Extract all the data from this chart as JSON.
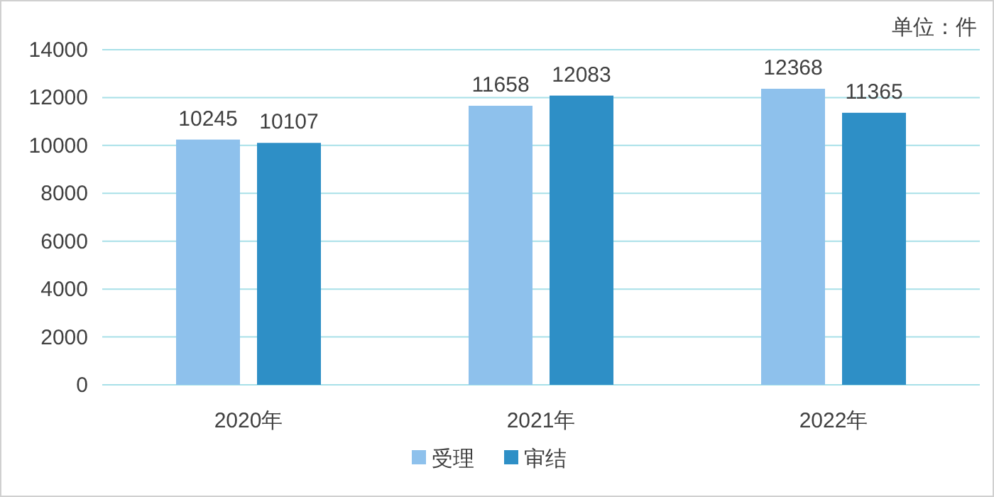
{
  "chart_data": {
    "type": "bar",
    "categories": [
      "2020年",
      "2021年",
      "2022年"
    ],
    "series": [
      {
        "name": "受理",
        "color": "#8ec1ec",
        "values": [
          10245,
          11658,
          12368
        ]
      },
      {
        "name": "审结",
        "color": "#2e8fc6",
        "values": [
          10107,
          12083,
          11365
        ]
      }
    ],
    "ylim": [
      0,
      14000
    ],
    "yticks": [
      0,
      2000,
      4000,
      6000,
      8000,
      10000,
      12000,
      14000
    ],
    "grid": "y",
    "data_labels": true,
    "legend": "bottom",
    "annotations": [
      "单位：件"
    ]
  }
}
